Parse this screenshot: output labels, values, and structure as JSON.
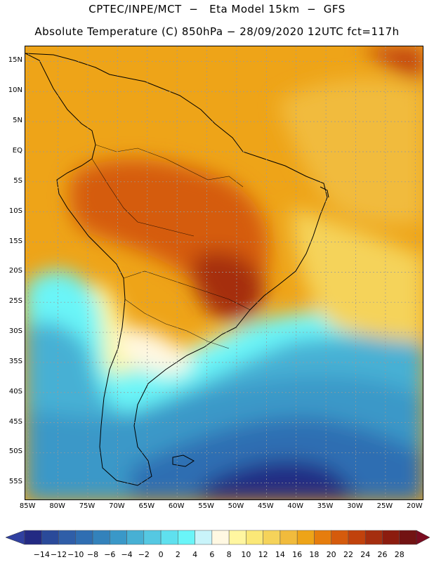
{
  "header": {
    "title_line1": "CPTEC/INPE/MCT  −   Eta Model 15km  −  GFS",
    "title_line2": "Absolute Temperature (C) 850hPa − 28/09/2020 12UTC fct=117h"
  },
  "map": {
    "lat_labels": [
      "15N",
      "10N",
      "5N",
      "EQ",
      "5S",
      "10S",
      "15S",
      "20S",
      "25S",
      "30S",
      "35S",
      "40S",
      "45S",
      "50S",
      "55S"
    ],
    "lat_values": [
      15,
      10,
      5,
      0,
      -5,
      -10,
      -15,
      -20,
      -25,
      -30,
      -35,
      -40,
      -45,
      -50,
      -55
    ],
    "lon_labels": [
      "85W",
      "80W",
      "75W",
      "70W",
      "65W",
      "60W",
      "55W",
      "50W",
      "45W",
      "40W",
      "35W",
      "30W",
      "25W",
      "20W"
    ],
    "lon_values": [
      -85,
      -80,
      -75,
      -70,
      -65,
      -60,
      -55,
      -50,
      -45,
      -40,
      -35,
      -30,
      -25,
      -20
    ],
    "lon_range": [
      -85.5,
      -18.5
    ],
    "lat_range": [
      -58,
      17.5
    ],
    "grid": true
  },
  "colorbar": {
    "labels": [
      "-14",
      "-12",
      "-10",
      "-8",
      "-6",
      "-4",
      "-2",
      "0",
      "2",
      "4",
      "6",
      "8",
      "10",
      "12",
      "14",
      "16",
      "18",
      "20",
      "22",
      "24",
      "26",
      "28"
    ],
    "colors": [
      "#232a83",
      "#2a4a9a",
      "#2f5ea8",
      "#2f6eb2",
      "#3382bb",
      "#3a98c8",
      "#47b0d4",
      "#55c8e2",
      "#5fe0ee",
      "#6af5f8",
      "#c9f4fa",
      "#fff8e2",
      "#fff6a0",
      "#fbe877",
      "#f5d35a",
      "#f1bb3c",
      "#eea418",
      "#e67d0d",
      "#d55b0c",
      "#c1420c",
      "#a52e0f",
      "#8c1c0f",
      "#721313"
    ],
    "under_color": "#3040a0",
    "over_color": "#7a0c20"
  }
}
